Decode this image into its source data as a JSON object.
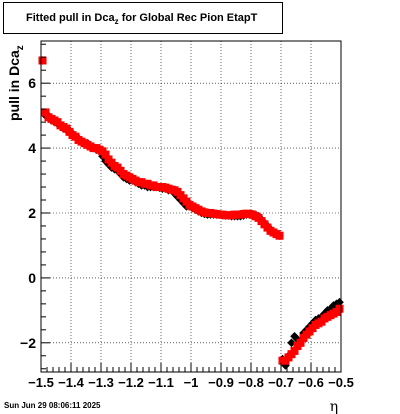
{
  "title": {
    "main": "Fitted pull in Dca",
    "sub": "z",
    "suffix": "for Global Rec Pion EtapT"
  },
  "footer": {
    "timestamp": "Sun Jun 29 08:06:11 2025"
  },
  "chart_data": {
    "type": "scatter",
    "title": "Fitted pull in Dca_z for Global Rec Pion EtapT",
    "xlabel": "η",
    "ylabel": "pull in Dca_z",
    "xlim": [
      -1.5,
      -0.5
    ],
    "ylim": [
      -2.9,
      7.3
    ],
    "xticks": [
      -1.5,
      -1.4,
      -1.3,
      -1.2,
      -1.1,
      -1,
      -0.9,
      -0.8,
      -0.7,
      -0.6,
      -0.5
    ],
    "xtick_labels": [
      "−1.5",
      "−1.4",
      "−1.3",
      "−1.2",
      "−1.1",
      "−1",
      "−0.9",
      "−0.8",
      "−0.7",
      "−0.6",
      "−0.5"
    ],
    "yticks": [
      -2,
      0,
      2,
      4,
      6
    ],
    "ytick_labels": [
      "−2",
      "0",
      "2",
      "4",
      "6"
    ],
    "grid": true,
    "colors": {
      "black": "#000000",
      "red": "#ff0000"
    },
    "series": [
      {
        "color": "black",
        "x": [
          -1.495,
          -1.485,
          -1.475,
          -1.465,
          -1.455,
          -1.445,
          -1.435,
          -1.425,
          -1.415,
          -1.405,
          -1.395,
          -1.385,
          -1.375,
          -1.365,
          -1.355,
          -1.345,
          -1.335,
          -1.325,
          -1.315,
          -1.305,
          -1.295,
          -1.285,
          -1.275,
          -1.265,
          -1.255,
          -1.245,
          -1.235,
          -1.225,
          -1.215,
          -1.205,
          -1.195,
          -1.185,
          -1.175,
          -1.165,
          -1.155,
          -1.145,
          -1.135,
          -1.125,
          -1.115,
          -1.105,
          -1.095,
          -1.085,
          -1.075,
          -1.065,
          -1.055,
          -1.045,
          -1.035,
          -1.025,
          -1.015,
          -1.005,
          -0.995,
          -0.985,
          -0.975,
          -0.965,
          -0.955,
          -0.945,
          -0.935,
          -0.925,
          -0.915,
          -0.905,
          -0.895,
          -0.885,
          -0.875,
          -0.865,
          -0.855,
          -0.845,
          -0.835,
          -0.825,
          -0.815,
          -0.805,
          -0.795,
          -0.785,
          -0.775,
          -0.765,
          -0.755,
          -0.745,
          -0.735,
          -0.725,
          -0.715,
          -0.705,
          -0.695,
          -0.685,
          -0.675,
          -0.665,
          -0.655,
          -0.645,
          -0.635,
          -0.625,
          -0.615,
          -0.605,
          -0.595,
          -0.585,
          -0.575,
          -0.565,
          -0.555,
          -0.545,
          -0.535,
          -0.525,
          -0.515,
          -0.505
        ],
        "y": [
          6.7,
          5.0,
          5.0,
          4.85,
          4.8,
          4.75,
          4.7,
          4.6,
          4.55,
          4.55,
          4.45,
          4.35,
          4.3,
          4.2,
          4.15,
          4.15,
          4.05,
          4.0,
          3.95,
          3.9,
          3.75,
          3.6,
          3.5,
          3.4,
          3.35,
          3.3,
          3.2,
          3.1,
          3.05,
          3.0,
          3.0,
          2.95,
          2.9,
          2.85,
          2.85,
          2.8,
          2.8,
          2.8,
          2.8,
          2.78,
          2.75,
          2.75,
          2.7,
          2.7,
          2.6,
          2.5,
          2.4,
          2.3,
          2.2,
          2.2,
          2.15,
          2.1,
          2.05,
          2.0,
          1.97,
          1.95,
          1.95,
          1.95,
          1.95,
          1.95,
          1.93,
          1.92,
          1.92,
          1.9,
          1.9,
          1.9,
          1.9,
          1.92,
          1.95,
          1.95,
          1.95,
          1.95,
          1.9,
          1.8,
          1.7,
          1.6,
          1.5,
          1.4,
          1.35,
          1.3,
          -2.5,
          -2.7,
          -2.4,
          -2.0,
          -1.8,
          -1.9,
          -2.0,
          -1.7,
          -1.6,
          -1.5,
          -1.4,
          -1.3,
          -1.25,
          -1.2,
          -1.1,
          -1.0,
          -0.95,
          -0.85,
          -0.8,
          -0.75
        ]
      },
      {
        "color": "red",
        "x": [
          -1.495,
          -1.485,
          -1.475,
          -1.465,
          -1.455,
          -1.445,
          -1.435,
          -1.425,
          -1.415,
          -1.405,
          -1.395,
          -1.385,
          -1.375,
          -1.365,
          -1.355,
          -1.345,
          -1.335,
          -1.325,
          -1.315,
          -1.305,
          -1.295,
          -1.285,
          -1.275,
          -1.265,
          -1.255,
          -1.245,
          -1.235,
          -1.225,
          -1.215,
          -1.205,
          -1.195,
          -1.185,
          -1.175,
          -1.165,
          -1.155,
          -1.145,
          -1.135,
          -1.125,
          -1.115,
          -1.105,
          -1.095,
          -1.085,
          -1.075,
          -1.065,
          -1.055,
          -1.045,
          -1.035,
          -1.025,
          -1.015,
          -1.005,
          -0.995,
          -0.985,
          -0.975,
          -0.965,
          -0.955,
          -0.945,
          -0.935,
          -0.925,
          -0.915,
          -0.905,
          -0.895,
          -0.885,
          -0.875,
          -0.865,
          -0.855,
          -0.845,
          -0.835,
          -0.825,
          -0.815,
          -0.805,
          -0.795,
          -0.785,
          -0.775,
          -0.765,
          -0.755,
          -0.745,
          -0.735,
          -0.725,
          -0.715,
          -0.705,
          -0.695,
          -0.685,
          -0.675,
          -0.665,
          -0.655,
          -0.645,
          -0.635,
          -0.625,
          -0.615,
          -0.605,
          -0.595,
          -0.585,
          -0.575,
          -0.565,
          -0.555,
          -0.545,
          -0.535,
          -0.525,
          -0.515,
          -0.505
        ],
        "y": [
          6.7,
          5.1,
          4.95,
          4.9,
          4.85,
          4.8,
          4.7,
          4.65,
          4.6,
          4.5,
          4.4,
          4.35,
          4.25,
          4.2,
          4.15,
          4.1,
          4.05,
          4.0,
          4.0,
          3.95,
          3.9,
          3.8,
          3.65,
          3.55,
          3.45,
          3.4,
          3.3,
          3.2,
          3.15,
          3.1,
          3.05,
          3.0,
          2.95,
          2.95,
          2.9,
          2.9,
          2.85,
          2.85,
          2.8,
          2.8,
          2.8,
          2.78,
          2.75,
          2.72,
          2.7,
          2.65,
          2.55,
          2.45,
          2.35,
          2.25,
          2.2,
          2.15,
          2.1,
          2.05,
          2.02,
          2.0,
          2.0,
          1.98,
          1.97,
          1.95,
          1.95,
          1.93,
          1.93,
          1.93,
          1.95,
          1.95,
          1.95,
          1.97,
          1.98,
          1.97,
          1.95,
          1.9,
          1.85,
          1.75,
          1.65,
          1.55,
          1.45,
          1.4,
          1.35,
          1.3,
          -2.55,
          -2.55,
          -2.45,
          -2.35,
          -2.25,
          -2.1,
          -2.0,
          -1.85,
          -1.75,
          -1.65,
          -1.55,
          -1.45,
          -1.4,
          -1.35,
          -1.25,
          -1.2,
          -1.15,
          -1.1,
          -1.05,
          -0.95
        ]
      }
    ]
  }
}
